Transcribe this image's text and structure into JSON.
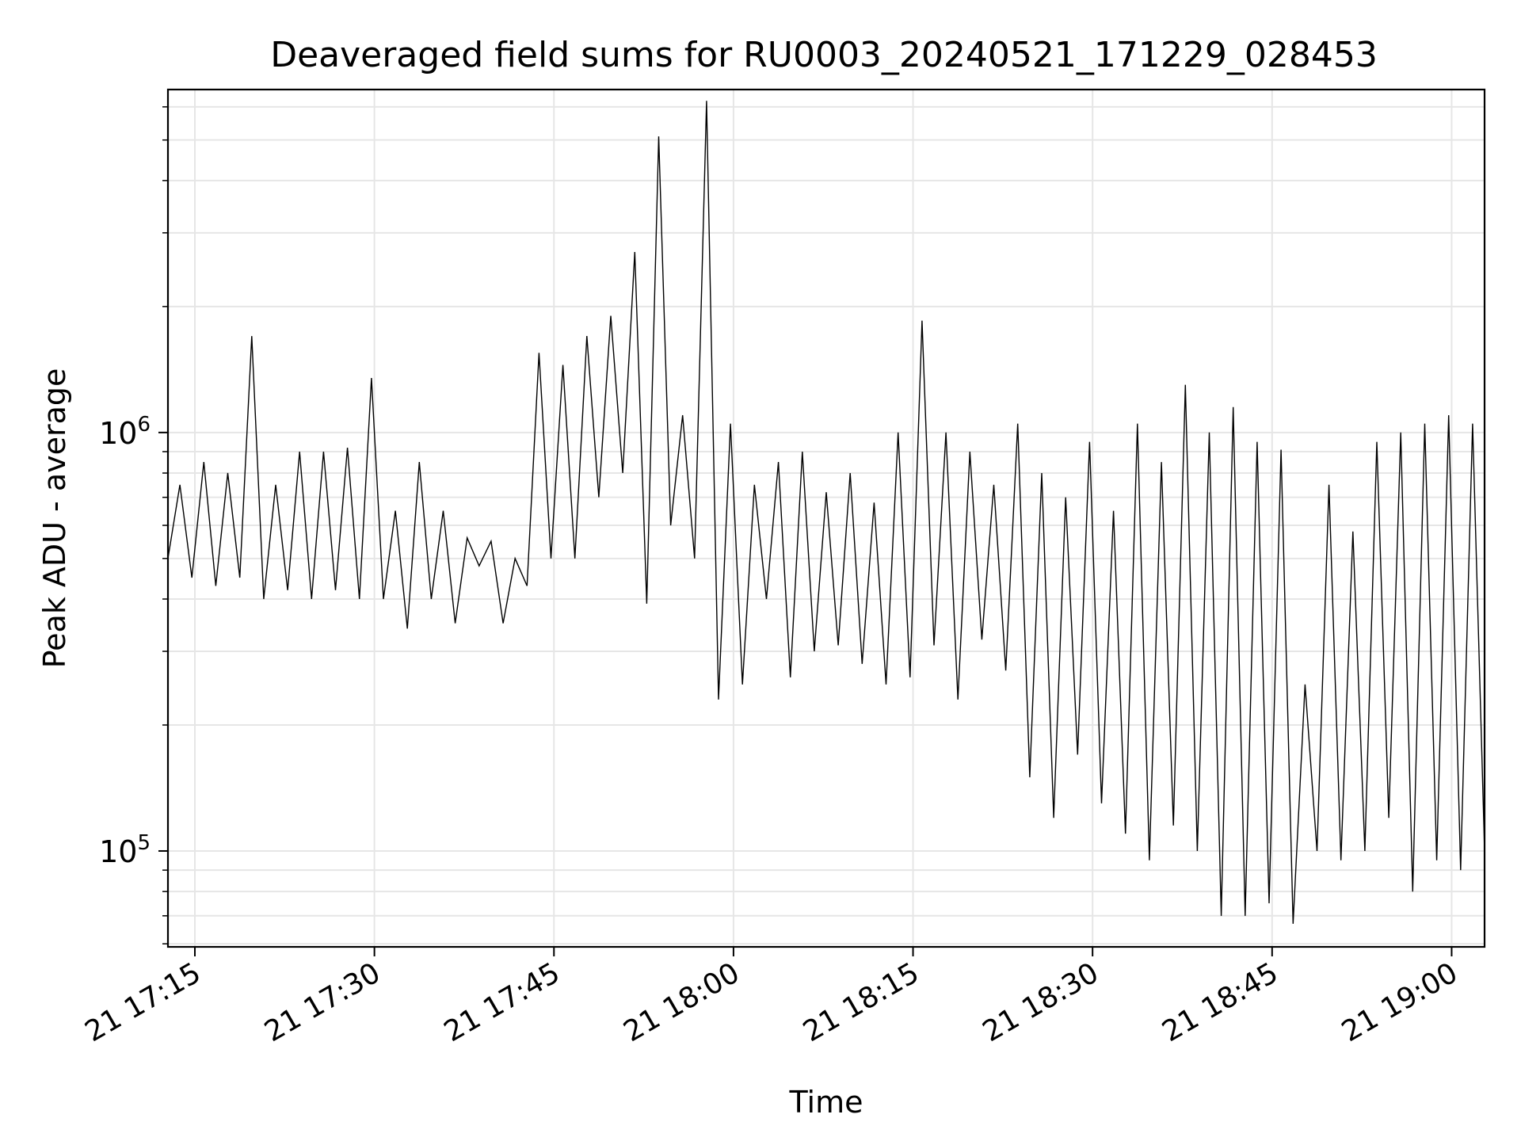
{
  "chart_data": {
    "type": "line",
    "title": "Deaveraged field sums for RU0003_20240521_171229_028453",
    "xlabel": "Time",
    "ylabel": "Peak ADU - average",
    "x_unit": "time of day on the 21st (HH:MM)",
    "xlim": [
      "17:12:45",
      "19:02:45"
    ],
    "ylim": [
      59000,
      6600000
    ],
    "y_scale": "log",
    "grid": true,
    "x_ticks": [
      "21 17:15",
      "21 17:30",
      "21 17:45",
      "21 18:00",
      "21 18:15",
      "21 18:30",
      "21 18:45",
      "21 19:00"
    ],
    "y_ticks": [
      {
        "value": 100000,
        "base": "10",
        "exp": "5"
      },
      {
        "value": 1000000,
        "base": "10",
        "exp": "6"
      }
    ],
    "line_color": "#000000",
    "grid_color": "#e6e6e6",
    "series": [
      {
        "x": [
          "17:12:45",
          "17:13:45",
          "17:14:45",
          "17:15:45",
          "17:16:45",
          "17:17:45",
          "17:18:45",
          "17:19:45",
          "17:20:45",
          "17:21:45",
          "17:22:45",
          "17:23:45",
          "17:24:45",
          "17:25:45",
          "17:26:45",
          "17:27:45",
          "17:28:45",
          "17:29:45",
          "17:30:45",
          "17:31:45",
          "17:32:45",
          "17:33:45",
          "17:34:45",
          "17:35:45",
          "17:36:45",
          "17:37:45",
          "17:38:45",
          "17:39:45",
          "17:40:45",
          "17:41:45",
          "17:42:45",
          "17:43:45",
          "17:44:45",
          "17:45:45",
          "17:46:45",
          "17:47:45",
          "17:48:45",
          "17:49:45",
          "17:50:45",
          "17:51:45",
          "17:52:45",
          "17:53:45",
          "17:54:45",
          "17:55:45",
          "17:56:45",
          "17:57:45",
          "17:58:45",
          "17:59:45",
          "18:00:45",
          "18:01:45",
          "18:02:45",
          "18:03:45",
          "18:04:45",
          "18:05:45",
          "18:06:45",
          "18:07:45",
          "18:08:45",
          "18:09:45",
          "18:10:45",
          "18:11:45",
          "18:12:45",
          "18:13:45",
          "18:14:45",
          "18:15:45",
          "18:16:45",
          "18:17:45",
          "18:18:45",
          "18:19:45",
          "18:20:45",
          "18:21:45",
          "18:22:45",
          "18:23:45",
          "18:24:45",
          "18:25:45",
          "18:26:45",
          "18:27:45",
          "18:28:45",
          "18:29:45",
          "18:30:45",
          "18:31:45",
          "18:32:45",
          "18:33:45",
          "18:34:45",
          "18:35:45",
          "18:36:45",
          "18:37:45",
          "18:38:45",
          "18:39:45",
          "18:40:45",
          "18:41:45",
          "18:42:45",
          "18:43:45",
          "18:44:45",
          "18:45:45",
          "18:46:45",
          "18:47:45",
          "18:48:45",
          "18:49:45",
          "18:50:45",
          "18:51:45",
          "18:52:45",
          "18:53:45",
          "18:54:45",
          "18:55:45",
          "18:56:45",
          "18:57:45",
          "18:58:45",
          "18:59:45",
          "19:00:45",
          "19:01:45",
          "19:02:45"
        ],
        "values": [
          500000,
          750000,
          450000,
          850000,
          430000,
          800000,
          450000,
          1700000,
          400000,
          750000,
          420000,
          900000,
          400000,
          900000,
          420000,
          920000,
          400000,
          1350000,
          400000,
          650000,
          340000,
          850000,
          400000,
          650000,
          350000,
          560000,
          480000,
          550000,
          350000,
          500000,
          430000,
          1550000,
          500000,
          1450000,
          500000,
          1700000,
          700000,
          1900000,
          800000,
          2700000,
          390000,
          5100000,
          600000,
          1100000,
          500000,
          6200000,
          230000,
          1050000,
          250000,
          750000,
          400000,
          850000,
          260000,
          900000,
          300000,
          720000,
          310000,
          800000,
          280000,
          680000,
          250000,
          1000000,
          260000,
          1850000,
          310000,
          1000000,
          230000,
          900000,
          320000,
          750000,
          270000,
          1050000,
          150000,
          800000,
          120000,
          700000,
          170000,
          950000,
          130000,
          650000,
          110000,
          1050000,
          95000,
          850000,
          115000,
          1300000,
          100000,
          1000000,
          70000,
          1150000,
          70000,
          950000,
          75000,
          910000,
          67000,
          250000,
          100000,
          750000,
          95000,
          580000,
          100000,
          950000,
          120000,
          1000000,
          80000,
          1050000,
          95000,
          1100000,
          90000,
          1050000,
          100000
        ]
      }
    ]
  }
}
